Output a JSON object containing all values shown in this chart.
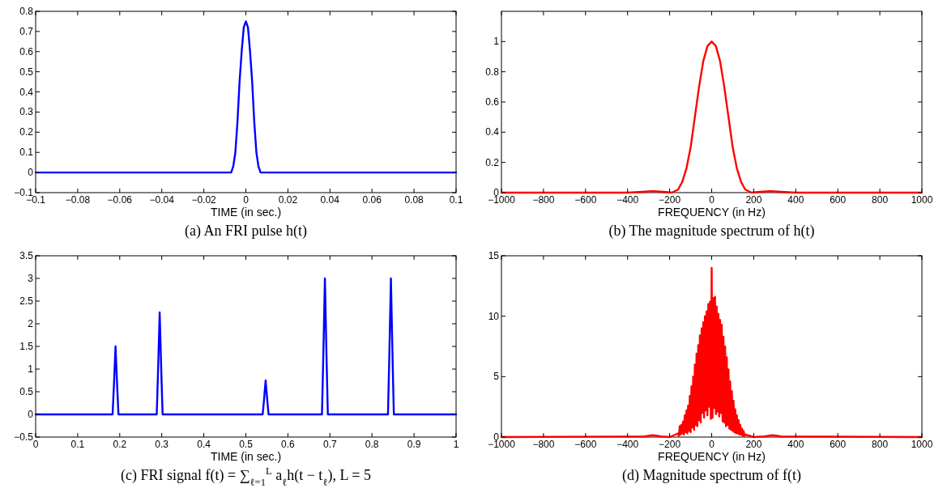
{
  "chart_data": [
    {
      "type": "line",
      "title": "(a) An FRI pulse h(t)",
      "xlabel": "TIME (in sec.)",
      "xlim": [
        -0.1,
        0.1
      ],
      "ylim": [
        -0.1,
        0.8
      ],
      "xticks": [
        -0.1,
        -0.08,
        -0.06,
        -0.04,
        -0.02,
        0,
        0.02,
        0.04,
        0.06,
        0.08,
        0.1
      ],
      "yticks": [
        -0.1,
        0,
        0.1,
        0.2,
        0.3,
        0.4,
        0.5,
        0.6,
        0.7,
        0.8
      ],
      "grid": false,
      "marker": "none",
      "line_style": "solid",
      "series": [
        {
          "color": "#0000ff",
          "x": [
            -0.1,
            -0.007,
            -0.006,
            -0.005,
            -0.004,
            -0.003,
            -0.002,
            -0.001,
            0,
            0.001,
            0.002,
            0.003,
            0.004,
            0.005,
            0.006,
            0.007,
            0.1
          ],
          "values": [
            0,
            0,
            0.03,
            0.1,
            0.25,
            0.45,
            0.6,
            0.72,
            0.75,
            0.72,
            0.6,
            0.45,
            0.25,
            0.1,
            0.03,
            0,
            0
          ]
        }
      ]
    },
    {
      "type": "line",
      "title": "(b) The magnitude spectrum of h(t)",
      "xlabel": "FREQUENCY (in Hz)",
      "xlim": [
        -1000,
        1000
      ],
      "ylim": [
        0,
        1.2
      ],
      "xticks": [
        -1000,
        -800,
        -600,
        -400,
        -200,
        0,
        200,
        400,
        600,
        800,
        1000
      ],
      "yticks": [
        0,
        0.2,
        0.4,
        0.6,
        0.8,
        1
      ],
      "grid": false,
      "marker": "none",
      "line_style": "solid",
      "series": [
        {
          "color": "#ff0000",
          "x": [
            -1000,
            -400,
            -330,
            -280,
            -230,
            -190,
            -160,
            -140,
            -120,
            -100,
            -80,
            -60,
            -40,
            -20,
            0,
            20,
            40,
            60,
            80,
            100,
            120,
            140,
            160,
            190,
            230,
            280,
            330,
            400,
            1000
          ],
          "values": [
            0,
            0,
            0.005,
            0.01,
            0.005,
            0,
            0.02,
            0.07,
            0.16,
            0.3,
            0.5,
            0.7,
            0.87,
            0.97,
            1,
            0.97,
            0.87,
            0.7,
            0.5,
            0.3,
            0.16,
            0.07,
            0.02,
            0,
            0.005,
            0.01,
            0.005,
            0,
            0
          ]
        }
      ]
    },
    {
      "type": "line",
      "title": "(c) FRI signal f(t) = ∑$_{ℓ=1}$$^{L}$ a$_{ℓ}$h(t − t$_{ℓ}$), L = 5",
      "xlabel": "TIME (in sec.)",
      "xlim": [
        0,
        1
      ],
      "ylim": [
        -0.5,
        3.5
      ],
      "xticks": [
        0,
        0.1,
        0.2,
        0.3,
        0.4,
        0.5,
        0.6,
        0.7,
        0.8,
        0.9,
        1
      ],
      "yticks": [
        -0.5,
        0,
        0.5,
        1,
        1.5,
        2,
        2.5,
        3,
        3.5
      ],
      "grid": false,
      "marker": "none",
      "line_style": "solid",
      "series": [
        {
          "color": "#0000ff",
          "x": [
            0,
            0.183,
            0.186,
            0.19,
            0.194,
            0.197,
            0.288,
            0.291,
            0.295,
            0.299,
            0.302,
            0.54,
            0.543,
            0.547,
            0.551,
            0.554,
            0.681,
            0.684,
            0.688,
            0.692,
            0.695,
            0.838,
            0.841,
            0.845,
            0.849,
            0.852,
            1
          ],
          "values": [
            0,
            0,
            0.6,
            1.5,
            0.6,
            0,
            0,
            0.9,
            2.25,
            0.9,
            0,
            0,
            0.3,
            0.75,
            0.3,
            0,
            0,
            1.2,
            3,
            1.2,
            0,
            0,
            1.2,
            3,
            1.2,
            0,
            0
          ]
        }
      ]
    },
    {
      "type": "line",
      "title": "(d) Magnitude spectrum of f(t)",
      "xlabel": "FREQUENCY (in Hz)",
      "xlim": [
        -1000,
        1000
      ],
      "ylim": [
        0,
        15
      ],
      "xticks": [
        -1000,
        -800,
        -600,
        -400,
        -200,
        0,
        200,
        400,
        600,
        800,
        1000
      ],
      "yticks": [
        0,
        5,
        10,
        15
      ],
      "grid": false,
      "marker": "none",
      "line_style": "solid",
      "series": [
        {
          "color": "#ff0000",
          "x": [
            -1000,
            -320,
            -280,
            -240,
            -200,
            -160,
            -156,
            -152,
            -148,
            -144,
            -140,
            -136,
            -132,
            -128,
            -124,
            -120,
            -116,
            -112,
            -108,
            -104,
            -100,
            -96,
            -92,
            -88,
            -84,
            -80,
            -76,
            -72,
            -68,
            -64,
            -60,
            -56,
            -52,
            -48,
            -44,
            -40,
            -36,
            -32,
            -28,
            -24,
            -20,
            -16,
            -12,
            -8,
            -4,
            0,
            4,
            8,
            12,
            16,
            20,
            24,
            28,
            32,
            36,
            40,
            44,
            48,
            52,
            56,
            60,
            64,
            68,
            72,
            76,
            80,
            84,
            88,
            92,
            96,
            100,
            104,
            108,
            112,
            116,
            120,
            124,
            128,
            132,
            136,
            140,
            144,
            148,
            152,
            156,
            160,
            200,
            250,
            290,
            330,
            1000
          ],
          "values": [
            0,
            0.05,
            0.15,
            0.05,
            0,
            0.3,
            0.1,
            0.9,
            0.2,
            1.0,
            0.3,
            1.3,
            0.2,
            1.8,
            0.4,
            2.2,
            0.3,
            2.6,
            0.5,
            3.4,
            0.4,
            4.2,
            0.8,
            5.0,
            0.6,
            6.0,
            1.0,
            6.9,
            0.9,
            7.6,
            1.4,
            8.4,
            1.2,
            9.0,
            2.0,
            9.5,
            1.6,
            10.0,
            2.2,
            10.4,
            1.8,
            11.0,
            2.5,
            11.2,
            1.5,
            14.0,
            1.6,
            11.5,
            2.4,
            11.6,
            1.9,
            10.8,
            2.1,
            10.2,
            1.7,
            9.7,
            2.0,
            9.3,
            1.3,
            8.3,
            1.2,
            7.5,
            0.9,
            6.6,
            1.0,
            5.6,
            0.7,
            4.6,
            0.6,
            3.8,
            0.5,
            3.0,
            0.4,
            2.3,
            0.3,
            1.8,
            0.3,
            1.4,
            0.2,
            1.0,
            0.2,
            0.7,
            0.1,
            0.5,
            0.1,
            0.2,
            0,
            0.05,
            0.15,
            0.05,
            0
          ]
        }
      ]
    }
  ]
}
